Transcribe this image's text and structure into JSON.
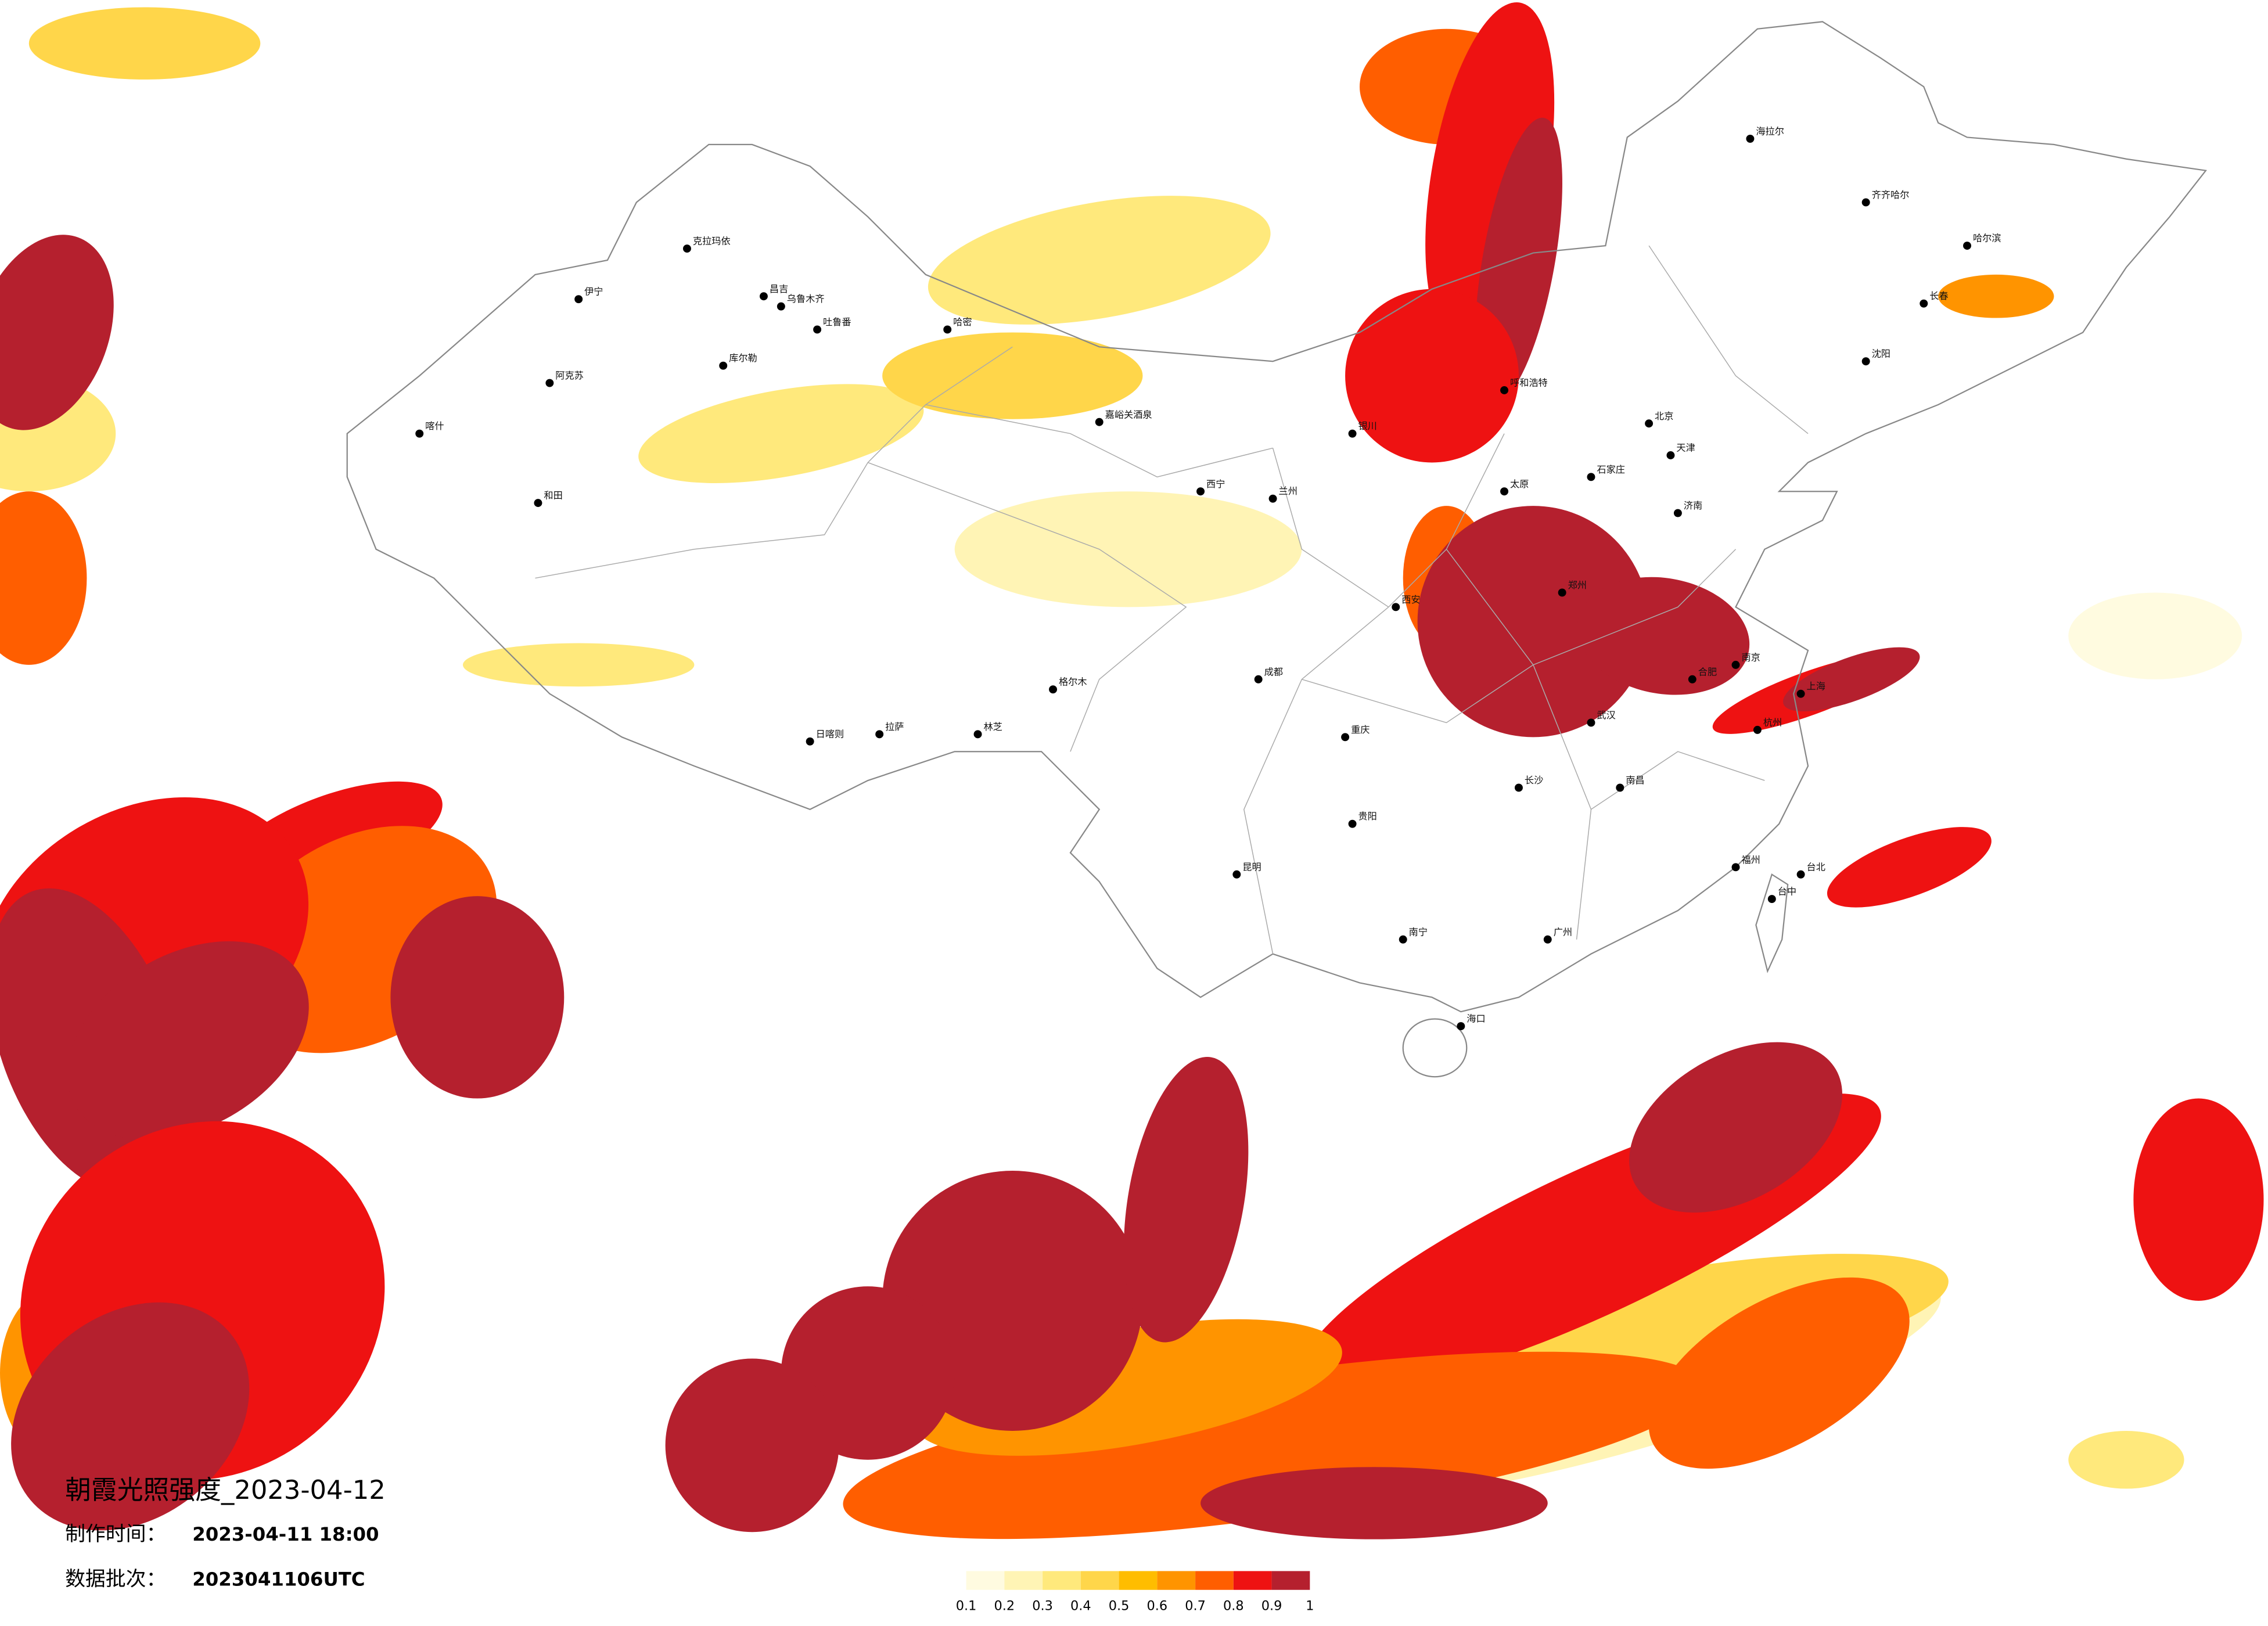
{
  "title": "朝霞光照强度_2023-04-12",
  "info": {
    "made_label": "制作时间：",
    "made_value": "2023-04-11 18:00",
    "batch_label": "数据批次：",
    "batch_value": "2023041106UTC"
  },
  "legend": {
    "ticks": [
      0.1,
      0.2,
      0.3,
      0.4,
      0.5,
      0.6,
      0.7,
      0.8,
      0.9,
      1
    ],
    "colors": [
      "#fffbe0",
      "#fff4b5",
      "#ffe97c",
      "#ffd64a",
      "#ffbd00",
      "#ff9400",
      "#ff5e00",
      "#ee1212",
      "#b5202e"
    ]
  },
  "map": {
    "cities": [
      "克拉玛依",
      "伊宁",
      "昌吉",
      "乌鲁木齐",
      "吐鲁番",
      "阿克苏",
      "喀什",
      "和田",
      "哈密",
      "库尔勒",
      "嘉峪关酒泉",
      "格尔木",
      "日喀则",
      "拉萨",
      "林芝",
      "海拉尔",
      "齐齐哈尔",
      "哈尔滨",
      "长春",
      "沈阳",
      "北京",
      "天津",
      "石家庄",
      "太原",
      "呼和浩特",
      "银川",
      "兰州",
      "西宁",
      "西安",
      "郑州",
      "济南",
      "武汉",
      "南京",
      "上海",
      "杭州",
      "合肥",
      "长沙",
      "南昌",
      "福州",
      "成都",
      "重庆",
      "贵阳",
      "昆明",
      "南宁",
      "广州",
      "海口",
      "台北",
      "台中"
    ]
  }
}
